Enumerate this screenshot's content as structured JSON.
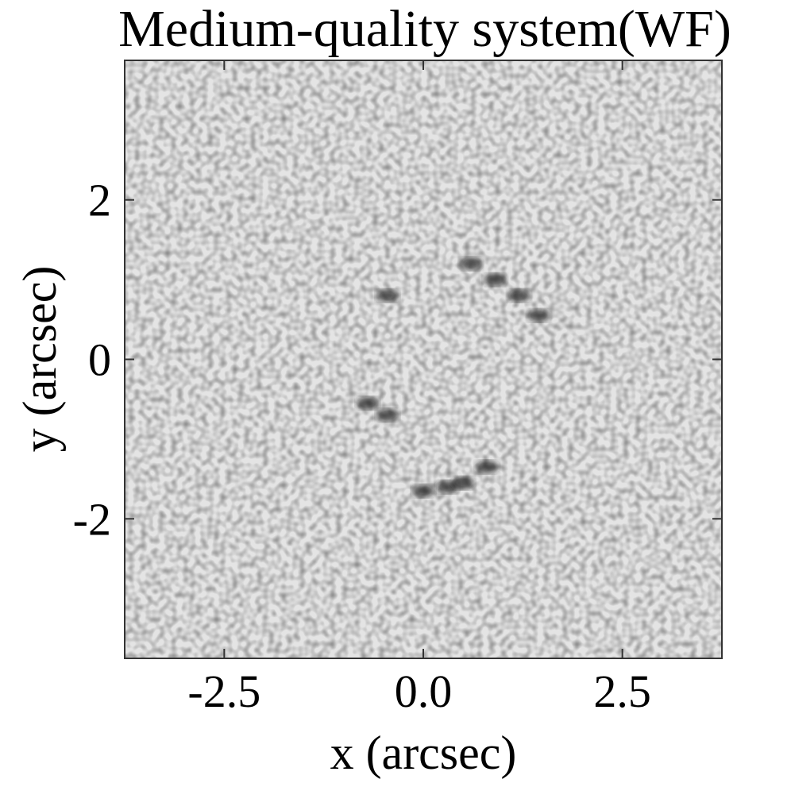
{
  "chart_data": {
    "type": "image",
    "title": "Medium-quality system(WF)",
    "xlabel": "x (arcsec)",
    "ylabel": "y (arcsec)",
    "xlim": [
      -3.75,
      3.75
    ],
    "ylim": [
      -3.75,
      3.75
    ],
    "xticks": [
      -2.5,
      {
        "value": 0,
        "label": "0.0"
      },
      2.5
    ],
    "yticks": [
      -2,
      0,
      2
    ],
    "x": [
      -0.45,
      0.6,
      0.9,
      1.2,
      1.45,
      -0.7,
      -0.45,
      0.0,
      0.3,
      0.5,
      0.8
    ],
    "y": [
      0.8,
      1.2,
      1.0,
      0.8,
      0.55,
      -0.55,
      -0.7,
      -1.65,
      -1.6,
      -1.55,
      -1.35
    ],
    "color": "#1a1a1a"
  }
}
